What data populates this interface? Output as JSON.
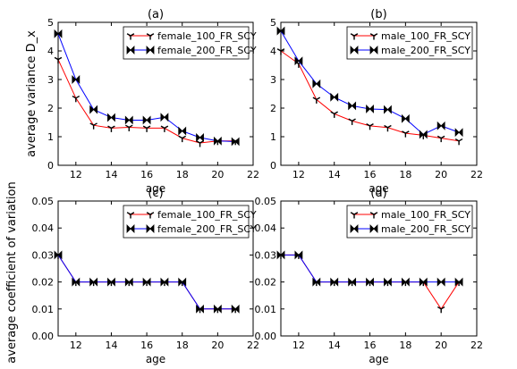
{
  "chart_data": [
    {
      "type": "line",
      "title": "(a)",
      "xlabel": "age",
      "ylabel": "average variance D_x",
      "xlim": [
        11,
        22
      ],
      "ylim": [
        0,
        5
      ],
      "xticks": [
        12,
        14,
        16,
        18,
        20,
        22
      ],
      "yticks": [
        0,
        1,
        2,
        3,
        4,
        5
      ],
      "ytick_labels": [
        "0",
        "1",
        "2",
        "3",
        "4",
        "5"
      ],
      "legend_position": "top-right",
      "grid": false,
      "x": [
        11,
        12,
        13,
        14,
        15,
        16,
        17,
        18,
        19,
        20,
        21
      ],
      "series": [
        {
          "name": "female_100_FR_SCY",
          "color": "#ff0000",
          "marker": "tri_down",
          "values": [
            3.7,
            2.35,
            1.4,
            1.3,
            1.33,
            1.3,
            1.3,
            0.95,
            0.78,
            0.85,
            0.85
          ]
        },
        {
          "name": "female_200_FR_SCY",
          "color": "#0000ff",
          "marker": "bowtie",
          "values": [
            4.6,
            3.0,
            1.95,
            1.67,
            1.58,
            1.58,
            1.68,
            1.2,
            0.97,
            0.85,
            0.83
          ]
        }
      ]
    },
    {
      "type": "line",
      "title": "(b)",
      "xlabel": "age",
      "ylabel": "",
      "xlim": [
        11,
        22
      ],
      "ylim": [
        0,
        5
      ],
      "xticks": [
        12,
        14,
        16,
        18,
        20,
        22
      ],
      "yticks": [
        0,
        1,
        2,
        3,
        4,
        5
      ],
      "ytick_labels": [
        "0",
        "1",
        "2",
        "3",
        "4",
        "5"
      ],
      "legend_position": "top-right",
      "grid": false,
      "x": [
        11,
        12,
        13,
        14,
        15,
        16,
        17,
        18,
        19,
        20,
        21
      ],
      "series": [
        {
          "name": "male_100_FR_SCY",
          "color": "#ff0000",
          "marker": "tri_down",
          "values": [
            4.0,
            3.55,
            2.3,
            1.8,
            1.55,
            1.38,
            1.32,
            1.12,
            1.05,
            0.95,
            0.85
          ]
        },
        {
          "name": "male_200_FR_SCY",
          "color": "#0000ff",
          "marker": "bowtie",
          "values": [
            4.7,
            3.65,
            2.85,
            2.38,
            2.08,
            1.97,
            1.95,
            1.63,
            1.08,
            1.38,
            1.15
          ]
        }
      ]
    },
    {
      "type": "line",
      "title": "(c)",
      "xlabel": "age",
      "ylabel": "average coefficient of variation",
      "xlim": [
        11,
        22
      ],
      "ylim": [
        0,
        0.05
      ],
      "xticks": [
        12,
        14,
        16,
        18,
        20,
        22
      ],
      "yticks": [
        0,
        0.01,
        0.02,
        0.03,
        0.04,
        0.05
      ],
      "ytick_labels": [
        "0.00",
        "0.01",
        "0.02",
        "0.03",
        "0.04",
        "0.05"
      ],
      "legend_position": "top-right",
      "grid": false,
      "x": [
        11,
        12,
        13,
        14,
        15,
        16,
        17,
        18,
        19,
        20,
        21
      ],
      "series": [
        {
          "name": "female_100_FR_SCY",
          "color": "#ff0000",
          "marker": "tri_down",
          "values": [
            0.03,
            0.02,
            0.02,
            0.02,
            0.02,
            0.02,
            0.02,
            0.02,
            0.01,
            0.01,
            0.01
          ]
        },
        {
          "name": "female_200_FR_SCY",
          "color": "#0000ff",
          "marker": "bowtie",
          "values": [
            0.03,
            0.02,
            0.02,
            0.02,
            0.02,
            0.02,
            0.02,
            0.02,
            0.01,
            0.01,
            0.01
          ]
        }
      ]
    },
    {
      "type": "line",
      "title": "(d)",
      "xlabel": "age",
      "ylabel": "",
      "xlim": [
        11,
        22
      ],
      "ylim": [
        0,
        0.05
      ],
      "xticks": [
        12,
        14,
        16,
        18,
        20,
        22
      ],
      "yticks": [
        0,
        0.01,
        0.02,
        0.03,
        0.04,
        0.05
      ],
      "ytick_labels": [
        "0.00",
        "0.01",
        "0.02",
        "0.03",
        "0.04",
        "0.05"
      ],
      "legend_position": "top-right",
      "grid": false,
      "x": [
        11,
        12,
        13,
        14,
        15,
        16,
        17,
        18,
        19,
        20,
        21
      ],
      "series": [
        {
          "name": "male_100_FR_SCY",
          "color": "#ff0000",
          "marker": "tri_down",
          "values": [
            0.03,
            0.03,
            0.02,
            0.02,
            0.02,
            0.02,
            0.02,
            0.02,
            0.02,
            0.01,
            0.02
          ]
        },
        {
          "name": "male_200_FR_SCY",
          "color": "#0000ff",
          "marker": "bowtie",
          "values": [
            0.03,
            0.03,
            0.02,
            0.02,
            0.02,
            0.02,
            0.02,
            0.02,
            0.02,
            0.02,
            0.02
          ]
        }
      ]
    }
  ]
}
